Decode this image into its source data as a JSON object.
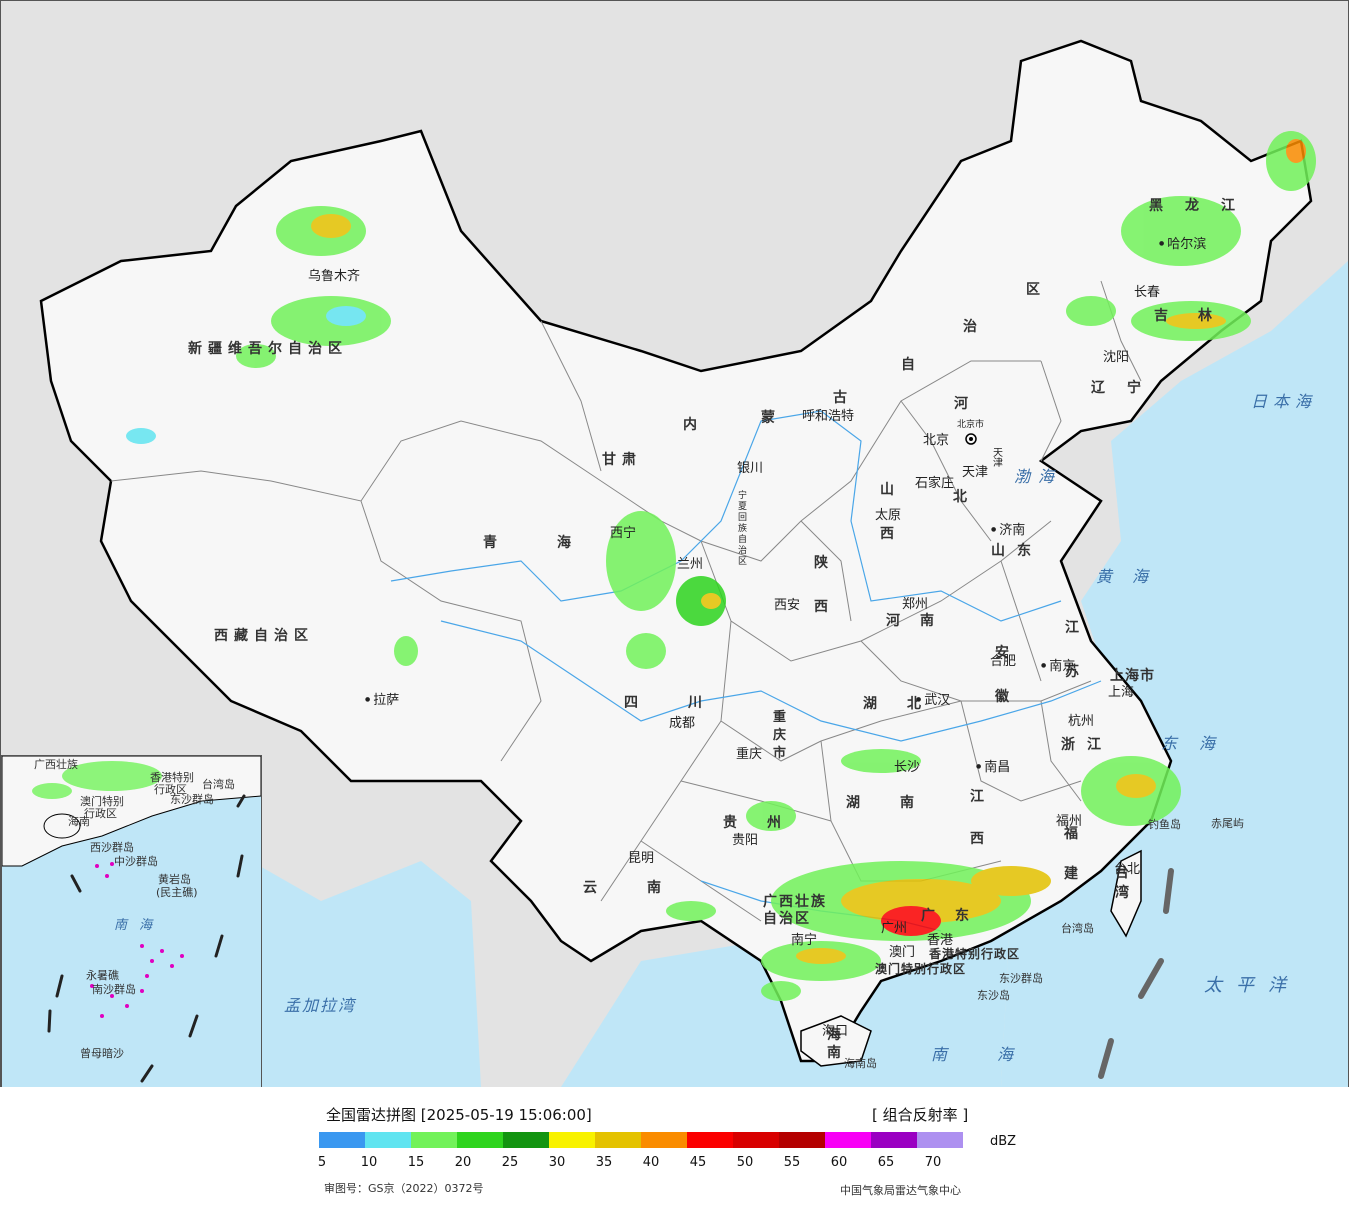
{
  "map": {
    "provinces": {
      "xinjiang": "新疆维吾尔自治区",
      "xizang": "西藏自治区",
      "qinghai": "青海",
      "gansu": "甘肃",
      "neimenggu_1": "内",
      "neimenggu_2": "蒙",
      "neimenggu_3": "古",
      "neimenggu_4": "自",
      "neimenggu_5": "治",
      "neimenggu_6": "区",
      "heilongjiang": "黑龙江",
      "jilin": "吉林",
      "liaoning": "辽宁",
      "hebei_1": "河",
      "hebei_2": "北",
      "shanxi": "山西",
      "shaanxi": "陕西",
      "shandong": "山东",
      "henan": "河南",
      "jiangsu": "江苏",
      "anhui": "安徽",
      "hubei": "湖北",
      "sichuan": "四川",
      "chongqing": "重庆市",
      "guizhou": "贵州",
      "yunnan": "云南",
      "hunan": "湖南",
      "jiangxi": "江西",
      "zhejiang": "浙江",
      "fujian": "福建",
      "guangxi": "广西壮族自治区",
      "guangdong": "广东",
      "hainan": "海南",
      "taiwan": "台湾",
      "shanghai": "上海市",
      "tianjin": "天津",
      "beijing_city": "北京市",
      "ningxia": "宁夏回族自治区",
      "hk": "香港特别行政区",
      "macau": "澳门特别行政区"
    },
    "cities": {
      "urumqi": "乌鲁木齐",
      "lhasa": "拉萨",
      "xining": "西宁",
      "lanzhou": "兰州",
      "yinchuan": "银川",
      "hohhot": "呼和浩特",
      "beijing": "北京",
      "tianjin": "天津",
      "shijiazhuang": "石家庄",
      "taiyuan": "太原",
      "jinan": "济南",
      "zhengzhou": "郑州",
      "xian": "西安",
      "hefei": "合肥",
      "nanjing": "南京",
      "shanghai": "上海",
      "hangzhou": "杭州",
      "wuhan": "武汉",
      "chengdu": "成都",
      "chongqing": "重庆",
      "guiyang": "贵阳",
      "kunming": "昆明",
      "changsha": "长沙",
      "nanchang": "南昌",
      "fuzhou": "福州",
      "guangzhou": "广州",
      "nanning": "南宁",
      "haikou": "海口",
      "taibei": "台北",
      "shenyang": "沈阳",
      "changchun": "长春",
      "harbin": "哈尔滨",
      "hk": "香港",
      "macau": "澳门"
    },
    "seas": {
      "bohai": "渤海",
      "huanghai": "黄海",
      "donghai": "东海",
      "nanhai": "南海",
      "japan_sea": "日本海",
      "pacific": "太平洋",
      "bengal": "孟加拉湾"
    },
    "islands": {
      "diaoyu": "钓鱼岛",
      "chiwei": "赤尾屿",
      "taiwan_island": "台湾岛",
      "dongsha_islands": "东沙群岛",
      "dongsha_island": "东沙岛",
      "hainan_island": "海南岛"
    }
  },
  "inset": {
    "labels": {
      "guangxi": "广西壮族",
      "hk": "香港特别",
      "hk2": "行政区",
      "macau": "澳门特别",
      "macau2": "行政区",
      "dongsha": "东沙群岛",
      "taiwan": "台湾岛",
      "hainan": "海南",
      "xisha": "西沙群岛",
      "zhongsha": "中沙群岛",
      "huangyan": "黄岩岛",
      "huangyan2": "(民主礁)",
      "nanhai": "南 海",
      "yongshu": "永暑礁",
      "nansha": "南沙群岛",
      "zengmu": "曾母暗沙"
    }
  },
  "legend": {
    "title": "全国雷达拼图 [2025-05-19 15:06:00]",
    "product": "[ 组合反射率 ]",
    "unit": "dBZ",
    "colors": [
      "#3a98f0",
      "#60e4f0",
      "#72f25a",
      "#2ed41e",
      "#129410",
      "#f8f200",
      "#e4c200",
      "#fa8c00",
      "#fb0000",
      "#d80000",
      "#b40000",
      "#f800f6",
      "#9a00c2",
      "#ad90f0"
    ],
    "ticks": [
      "5",
      "10",
      "15",
      "20",
      "25",
      "30",
      "35",
      "40",
      "45",
      "50",
      "55",
      "60",
      "65",
      "70"
    ],
    "review_number": "审图号：GS京（2022）0372号",
    "source": "中国气象局雷达气象中心"
  }
}
